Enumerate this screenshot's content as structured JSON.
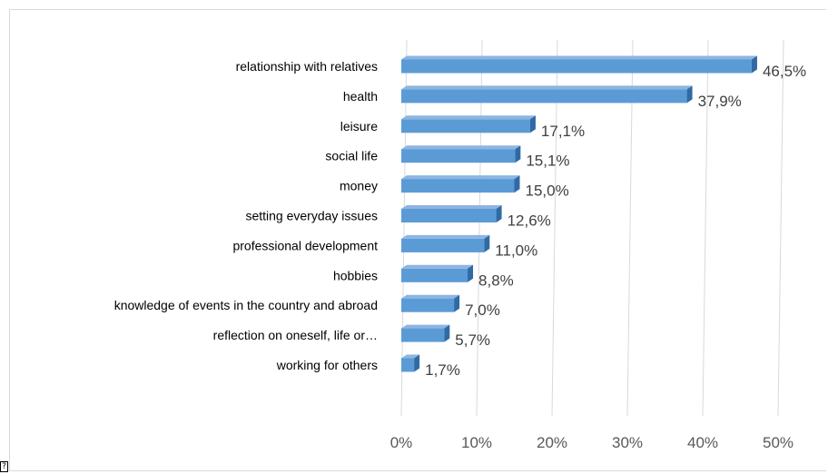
{
  "chart_data": {
    "type": "bar",
    "orientation": "horizontal",
    "categories": [
      "relationship with relatives",
      "health",
      "leisure",
      "social life",
      "money",
      "setting everyday issues",
      "professional development",
      "hobbies",
      "knowledge of events in the country and abroad",
      "reflection on oneself, life or…",
      "working for others"
    ],
    "values": [
      46.5,
      37.9,
      17.1,
      15.1,
      15.0,
      12.6,
      11.0,
      8.8,
      7.0,
      5.7,
      1.7
    ],
    "value_labels": [
      "46,5%",
      "37,9%",
      "17,1%",
      "15,1%",
      "15,0%",
      "12,6%",
      "11,0%",
      "8,8%",
      "7,0%",
      "5,7%",
      "1,7%"
    ],
    "x_ticks": [
      0,
      10,
      20,
      30,
      40,
      50
    ],
    "x_tick_labels": [
      "0%",
      "10%",
      "20%",
      "30%",
      "40%",
      "50%"
    ],
    "xlim": [
      0,
      50
    ],
    "grid": true,
    "style": "3d-bar",
    "colors": {
      "bar_front": "#5b9bd5",
      "bar_top": "#8db5e2",
      "bar_side": "#2f6aa6",
      "gridline": "#d9d9d9"
    }
  },
  "corner_glyph": "?"
}
